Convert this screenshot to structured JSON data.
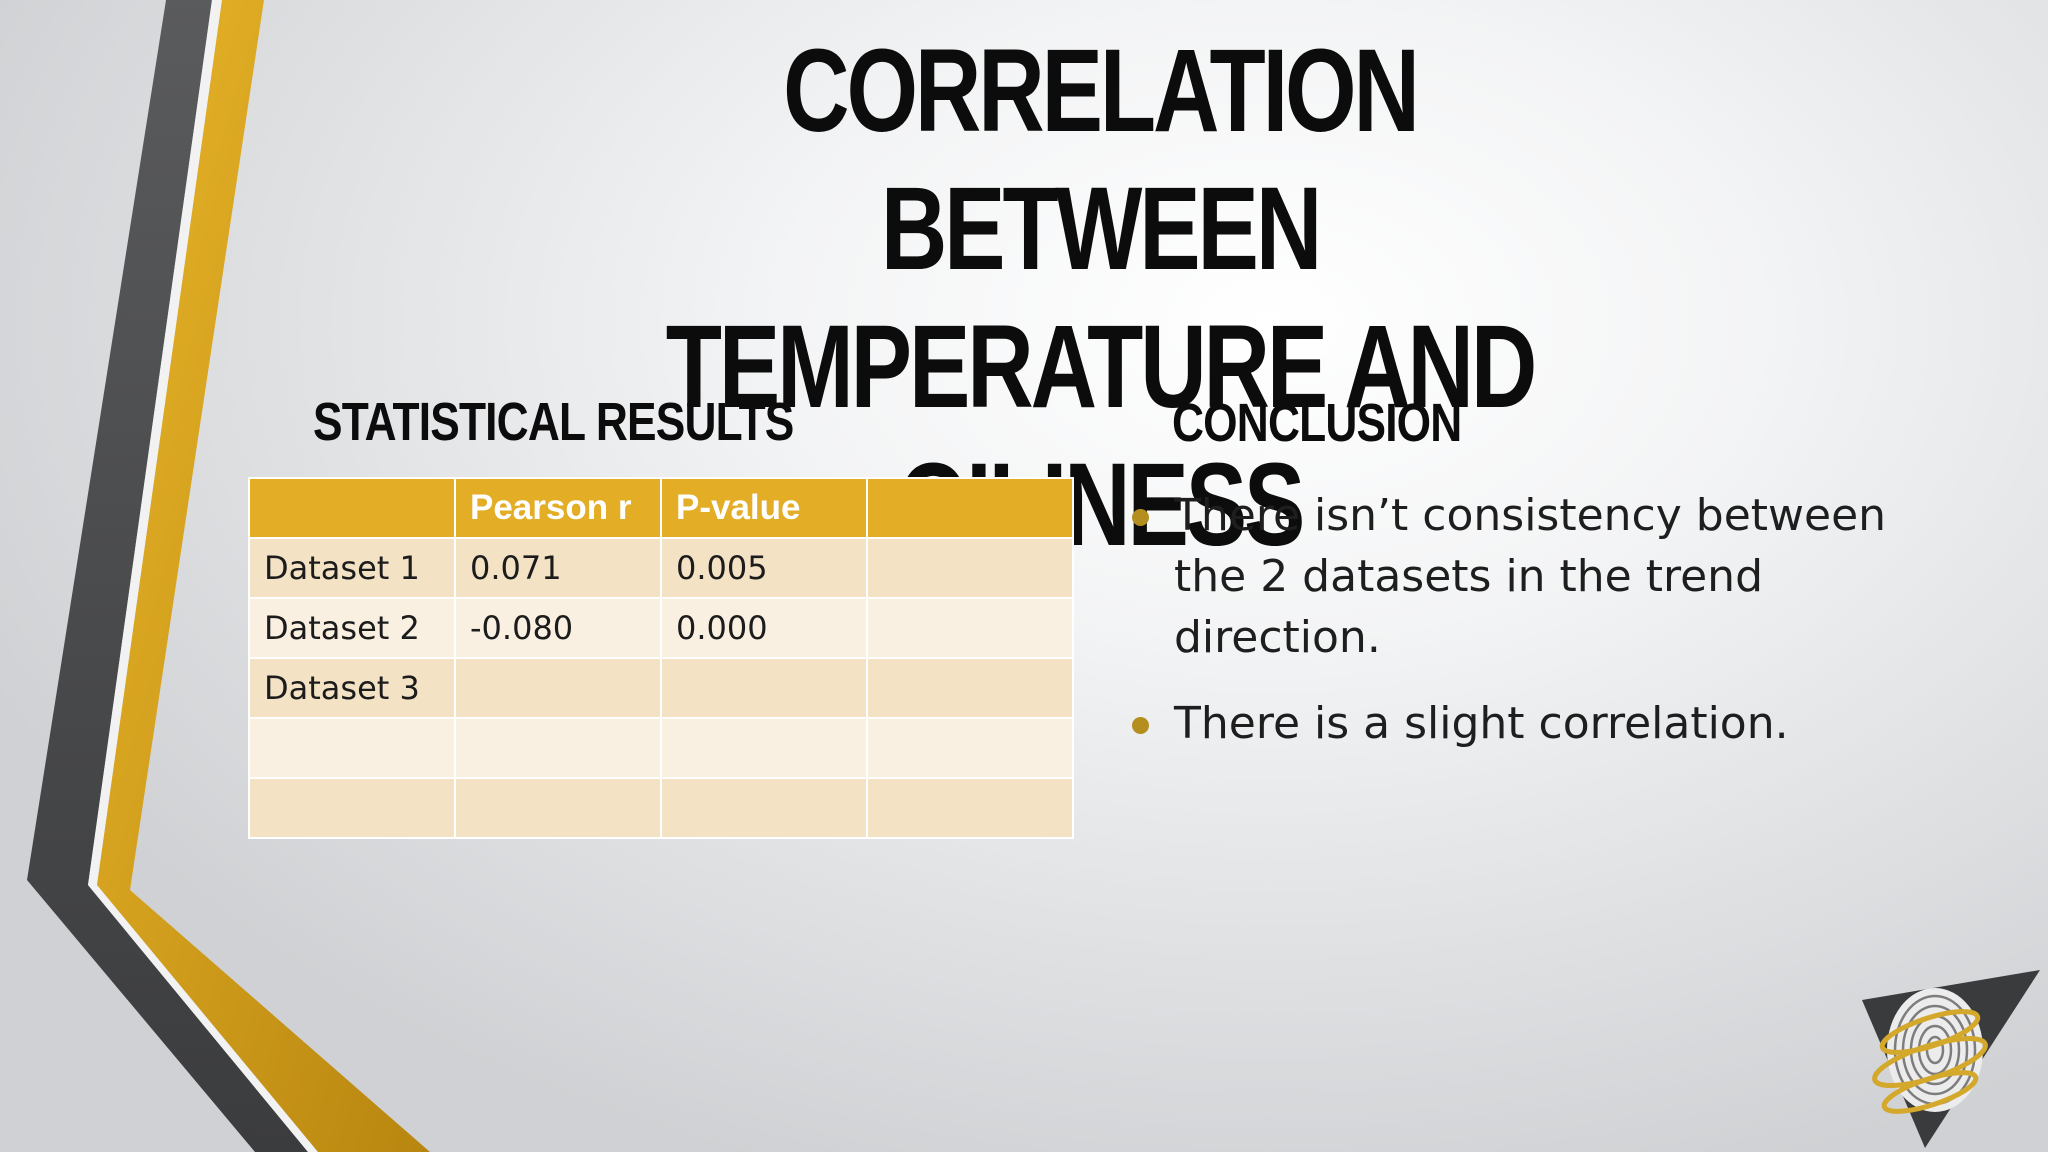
{
  "slide": {
    "title_line1": "CORRELATION BETWEEN",
    "title_line2": "TEMPERATURE AND OILINESS"
  },
  "statistical_results": {
    "heading": "STATISTICAL RESULTS",
    "table": {
      "headers": [
        "",
        "Pearson r",
        "P-value",
        ""
      ],
      "rows": [
        [
          "Dataset 1",
          "0.071",
          "0.005",
          ""
        ],
        [
          "Dataset 2",
          "-0.080",
          "0.000",
          ""
        ],
        [
          "Dataset 3",
          "",
          "",
          ""
        ],
        [
          "",
          "",
          "",
          ""
        ],
        [
          "",
          "",
          "",
          ""
        ]
      ]
    }
  },
  "conclusion": {
    "heading": "CONCLUSION",
    "bullets": [
      "There isn’t consistency between the 2 datasets in the trend direction.",
      "There is a slight correlation."
    ]
  },
  "colors": {
    "accent_gold": "#e3ad25",
    "dark_gray": "#4f5052",
    "row_odd": "#f3e2c3",
    "row_even": "#f9f0e2",
    "bullet": "#b48e1e"
  },
  "icons": {
    "logo": "fingerprint-triangle-logo-icon"
  }
}
